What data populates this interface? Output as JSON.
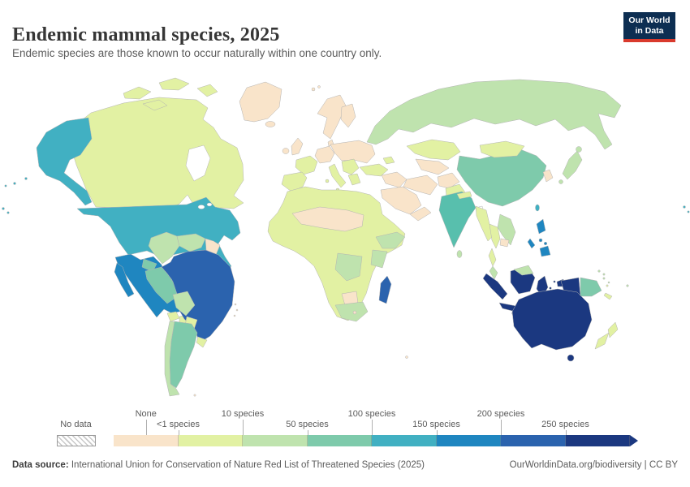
{
  "header": {
    "title": "Endemic mammal species, 2025",
    "subtitle": "Endemic species are those known to occur naturally within one country only.",
    "logo": {
      "line1": "Our World",
      "line2": "in Data",
      "bg": "#0d2e52",
      "accent": "#d93a2d"
    }
  },
  "legend": {
    "no_data_label": "No data",
    "bin_colors": [
      "#f9e4ca",
      "#e2f1a3",
      "#bfe3ae",
      "#7ecaab",
      "#41b0c2",
      "#1f86c0",
      "#2b63ae",
      "#1b3880"
    ],
    "bin_names": [
      "None",
      "<1 species",
      "10 species",
      "50 species",
      "100 species",
      "150 species",
      "200 species",
      "250 species"
    ],
    "ticks": [
      {
        "label": "None",
        "row": "top",
        "pos": 0.5
      },
      {
        "label": "<1 species",
        "row": "bottom",
        "pos": 1
      },
      {
        "label": "10 species",
        "row": "top",
        "pos": 2
      },
      {
        "label": "50 species",
        "row": "bottom",
        "pos": 3
      },
      {
        "label": "100 species",
        "row": "top",
        "pos": 4
      },
      {
        "label": "150 species",
        "row": "bottom",
        "pos": 5
      },
      {
        "label": "200 species",
        "row": "top",
        "pos": 6
      },
      {
        "label": "250 species",
        "row": "bottom",
        "pos": 7
      }
    ]
  },
  "footer": {
    "source_label": "Data source:",
    "source_text": " International Union for Conservation of Nature Red List of Threatened Species (2025)",
    "link_text": "OurWorldinData.org/biodiversity",
    "separator": " | ",
    "license_text": "CC BY"
  },
  "map": {
    "stroke_color": "#b3b3b3",
    "overrides": {
      "india": "#58bfad"
    }
  },
  "chart_data": {
    "type": "choropleth",
    "title": "Endemic mammal species, 2025",
    "unit": "endemic mammal species",
    "legend_bins": [
      "None",
      "<1 species",
      "10 species",
      "50 species",
      "100 species",
      "150 species",
      "200 species",
      "250 species"
    ],
    "no_data_style": "hatched",
    "country_bins": {
      "greenland": 1,
      "iceland": 1,
      "svalbard": 1,
      "uk": 1,
      "ireland": 1,
      "norway-sweden": 1,
      "finland": 1,
      "denmark": 1,
      "central-europe": 1,
      "east-europe": 1,
      "syria-iraq": 1,
      "iran": 1,
      "afghanistan": 1,
      "saudi-arabia": 1,
      "yemen-oman": 1,
      "central-asia": 1,
      "korea": 1,
      "cambodia": 1,
      "guyanas": 1,
      "cuba": 1,
      "hispaniola": 1,
      "puerto-rico": 1,
      "bahamas": 1,
      "lesser-antilles": 1,
      "sahara-belt": 1,
      "botswana": 1,
      "lesotho": 1,
      "falkland-islands": 1,
      "indian-ocean-island": 1,
      "canada": 2,
      "canada-arctic": 2,
      "france": 2,
      "iberia": 2,
      "italy": 2,
      "sicily": 2,
      "sardinia": 2,
      "balkans": 2,
      "greece": 2,
      "turkey": 2,
      "caucasus": 2,
      "kazakhstan": 2,
      "mongolia": 2,
      "nepal": 2,
      "pakistan": 2,
      "myanmar": 2,
      "thailand": 2,
      "africa-mainland": 2,
      "guatemala": 2,
      "honduras-nicaragua": 2,
      "jamaica": 2,
      "paraguay": 2,
      "uruguay": 2,
      "new-zealand": 2,
      "new-caledonia": 2,
      "vanuatu": 2,
      "russia": 3,
      "japan": 3,
      "vietnam-laos": 3,
      "malay-peninsula": 3,
      "malaysia-borneo": 3,
      "sri-lanka": 3,
      "colombia": 3,
      "venezuela": 3,
      "bolivia": 3,
      "chile": 3,
      "horn-of-africa": 3,
      "east-africa": 3,
      "central-africa": 3,
      "south-africa": 3,
      "costa-rica-panama": 3,
      "solomon-islands": 3,
      "fiji": 3,
      "png-islands": 3,
      "china": 4,
      "peru": 4,
      "ecuador": 4,
      "argentina": 4,
      "papua-new-guinea": 4,
      "india": 4,
      "usa": 5,
      "alaska": 5,
      "aleutians": 5,
      "pacific-wrap-west": 5,
      "pacific-wrap-east": 5,
      "taiwan": 5,
      "mexico": 6,
      "philippines": 6,
      "brazil": 7,
      "madagascar": 7,
      "australia": 8,
      "tasmania": 8,
      "indonesia": 8
    }
  }
}
